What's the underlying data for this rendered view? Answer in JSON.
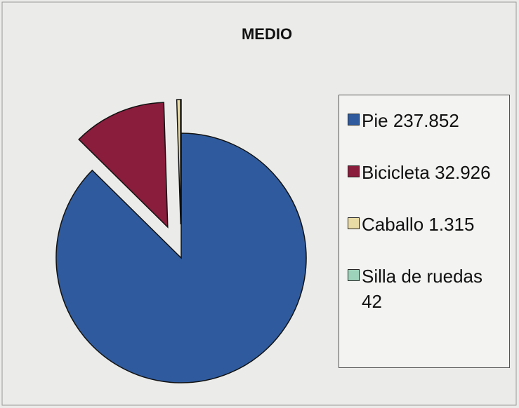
{
  "chart_data": {
    "type": "pie",
    "title": "MEDIO",
    "categories": [
      "Pie",
      "Bicicleta",
      "Caballo",
      "Silla de ruedas"
    ],
    "values": [
      237852,
      32926,
      1315,
      42
    ],
    "value_labels": [
      "237.852",
      "32.926",
      "1.315",
      "42"
    ],
    "colors": [
      "#2f5b9e",
      "#8a1c3c",
      "#e9dba4",
      "#9ed3bb"
    ]
  }
}
